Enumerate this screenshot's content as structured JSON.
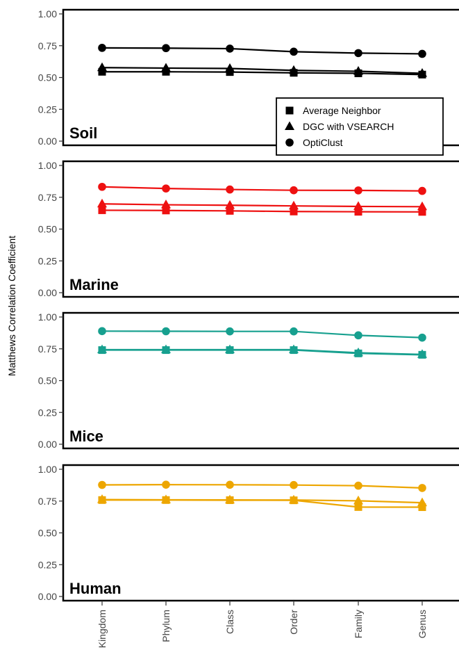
{
  "figure": {
    "ylabel": "Matthews Correlation Coefficient",
    "y_ticks": [
      "0.00",
      "0.25",
      "0.50",
      "0.75",
      "1.00"
    ]
  },
  "chart_data": [
    {
      "type": "line",
      "panel": "Soil",
      "categories": [
        "Kingdom",
        "Phylum",
        "Class",
        "Order",
        "Family",
        "Genus"
      ],
      "ylim": [
        0,
        1
      ],
      "color": "#000000",
      "legend_placement": "bottom-right",
      "series": [
        {
          "name": "Average Neighbor",
          "marker": "square",
          "values": [
            0.545,
            0.545,
            0.543,
            0.537,
            0.533,
            0.523
          ]
        },
        {
          "name": "DGC with VSEARCH",
          "marker": "triangle",
          "values": [
            0.578,
            0.574,
            0.571,
            0.556,
            0.549,
            0.533
          ]
        },
        {
          "name": "OptiClust",
          "marker": "circle",
          "values": [
            0.733,
            0.731,
            0.727,
            0.703,
            0.692,
            0.686
          ]
        }
      ]
    },
    {
      "type": "line",
      "panel": "Marine",
      "categories": [
        "Kingdom",
        "Phylum",
        "Class",
        "Order",
        "Family",
        "Genus"
      ],
      "ylim": [
        0,
        1
      ],
      "color": "#ee1111",
      "series": [
        {
          "name": "Average Neighbor",
          "marker": "square",
          "values": [
            0.648,
            0.646,
            0.643,
            0.638,
            0.636,
            0.635
          ]
        },
        {
          "name": "DGC with VSEARCH",
          "marker": "triangle",
          "values": [
            0.698,
            0.691,
            0.687,
            0.682,
            0.678,
            0.676
          ]
        },
        {
          "name": "OptiClust",
          "marker": "circle",
          "values": [
            0.832,
            0.819,
            0.811,
            0.805,
            0.804,
            0.8
          ]
        }
      ]
    },
    {
      "type": "line",
      "panel": "Mice",
      "categories": [
        "Kingdom",
        "Phylum",
        "Class",
        "Order",
        "Family",
        "Genus"
      ],
      "ylim": [
        0,
        1
      ],
      "color": "#17a08f",
      "series": [
        {
          "name": "Average Neighbor",
          "marker": "square",
          "values": [
            0.74,
            0.74,
            0.74,
            0.74,
            0.714,
            0.703
          ]
        },
        {
          "name": "DGC with VSEARCH",
          "marker": "triangle",
          "values": [
            0.743,
            0.743,
            0.743,
            0.743,
            0.719,
            0.706
          ]
        },
        {
          "name": "OptiClust",
          "marker": "circle",
          "values": [
            0.889,
            0.888,
            0.887,
            0.887,
            0.856,
            0.838
          ]
        }
      ]
    },
    {
      "type": "line",
      "panel": "Human",
      "categories": [
        "Kingdom",
        "Phylum",
        "Class",
        "Order",
        "Family",
        "Genus"
      ],
      "ylim": [
        0,
        1
      ],
      "color": "#eda600",
      "series": [
        {
          "name": "Average Neighbor",
          "marker": "square",
          "values": [
            0.758,
            0.758,
            0.757,
            0.756,
            0.703,
            0.702
          ]
        },
        {
          "name": "DGC with VSEARCH",
          "marker": "triangle",
          "values": [
            0.762,
            0.76,
            0.759,
            0.758,
            0.752,
            0.737
          ]
        },
        {
          "name": "OptiClust",
          "marker": "circle",
          "values": [
            0.877,
            0.879,
            0.878,
            0.876,
            0.871,
            0.853
          ]
        }
      ]
    }
  ]
}
